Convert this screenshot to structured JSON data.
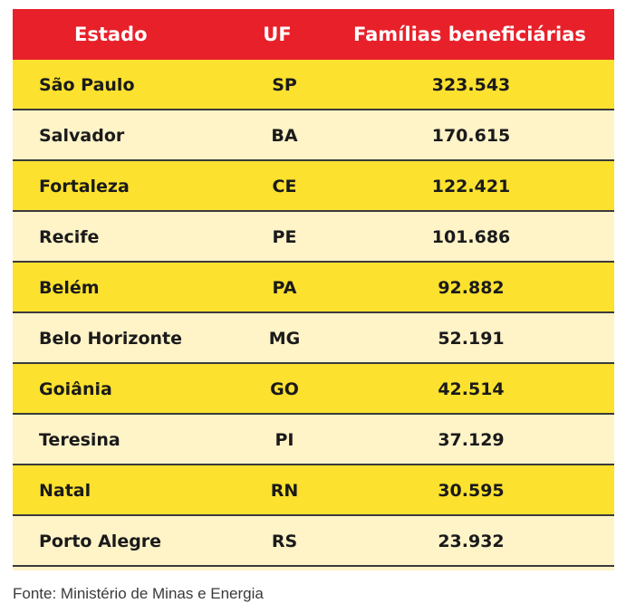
{
  "table": {
    "headers": {
      "estado": "Estado",
      "uf": "UF",
      "familias": "Famílias beneficiárias"
    },
    "rows": [
      {
        "estado": "São Paulo",
        "uf": "SP",
        "familias": "323.543"
      },
      {
        "estado": "Salvador",
        "uf": "BA",
        "familias": "170.615"
      },
      {
        "estado": "Fortaleza",
        "uf": "CE",
        "familias": "122.421"
      },
      {
        "estado": "Recife",
        "uf": "PE",
        "familias": "101.686"
      },
      {
        "estado": "Belém",
        "uf": "PA",
        "familias": "92.882"
      },
      {
        "estado": "Belo Horizonte",
        "uf": "MG",
        "familias": "52.191"
      },
      {
        "estado": "Goiânia",
        "uf": "GO",
        "familias": "42.514"
      },
      {
        "estado": "Teresina",
        "uf": "PI",
        "familias": "37.129"
      },
      {
        "estado": "Natal",
        "uf": "RN",
        "familias": "30.595"
      },
      {
        "estado": "Porto Alegre",
        "uf": "RS",
        "familias": "23.932"
      }
    ]
  },
  "source": "Fonte: Ministério de Minas e Energia",
  "colors": {
    "header_bg": "#e8202a",
    "row_odd": "#fce12f",
    "row_even": "#fff3c8",
    "map_green": "#1fd41f"
  },
  "icons": {
    "map": "brazil-map-icon"
  }
}
